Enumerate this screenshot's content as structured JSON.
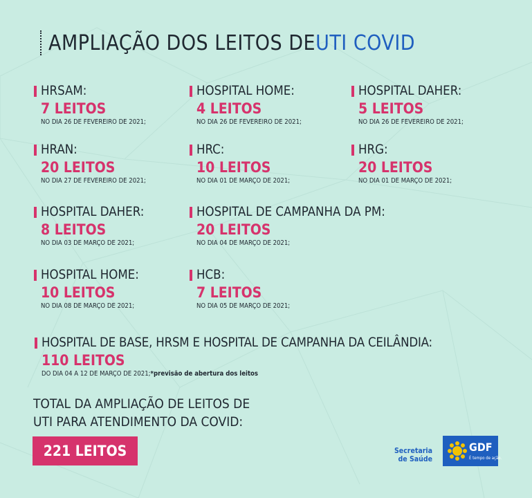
{
  "title": {
    "main": "AMPLIAÇÃO DOS LEITOS DE ",
    "highlight": "UTI COVID"
  },
  "items": [
    {
      "name": "HRSAM:",
      "beds": "7 LEITOS",
      "date": "NO DIA 26 DE FEVEREIRO DE 2021;"
    },
    {
      "name": "HOSPITAL HOME:",
      "beds": "4 LEITOS",
      "date": "NO DIA 26 DE FEVEREIRO DE 2021;"
    },
    {
      "name": "HOSPITAL DAHER:",
      "beds": "5 LEITOS",
      "date": "NO DIA 26 DE FEVEREIRO DE 2021;"
    },
    {
      "name": "HRAN:",
      "beds": "20 LEITOS",
      "date": "NO DIA 27 DE FEVEREIRO DE 2021;"
    },
    {
      "name": "HRC:",
      "beds": "10 LEITOS",
      "date": "NO DIA 01 DE MARÇO DE 2021;"
    },
    {
      "name": "HRG:",
      "beds": "20 LEITOS",
      "date": "NO DIA 01 DE MARÇO DE 2021;"
    },
    {
      "name": "HOSPITAL DAHER:",
      "beds": "8 LEITOS",
      "date": "NO DIA 03 DE MARÇO DE 2021;"
    },
    {
      "name": "HOSPITAL DE CAMPANHA DA PM:",
      "beds": "20 LEITOS",
      "date": "NO DIA 04 DE MARÇO DE 2021;"
    },
    {
      "name": "HOSPITAL HOME:",
      "beds": "10 LEITOS",
      "date": "NO DIA 08 DE MARÇO DE 2021;"
    },
    {
      "name": "HCB:",
      "beds": "7 LEITOS",
      "date": "NO DIA 05 DE MARÇO DE 2021;"
    },
    {
      "name": "HOSPITAL DE BASE, HRSM E HOSPITAL DE CAMPANHA DA CEILÂNDIA:",
      "beds": "110 LEITOS",
      "date": "DO DIA 04 A 12 DE MARÇO DE 2021;",
      "note": "*previsão de abertura dos leitos"
    }
  ],
  "total": {
    "line1": "TOTAL DA AMPLIAÇÃO DE LEITOS DE",
    "line2": "UTI PARA ATENDIMENTO DA COVID:",
    "value": "221 LEITOS"
  },
  "footer": {
    "secretaria_line1": "Secretaria",
    "secretaria_line2": "de Saúde",
    "gdf": "GDF",
    "gdf_slogan": "É tempo de ação."
  },
  "colors": {
    "background": "#c9ece2",
    "accent": "#d6336c",
    "highlight": "#1f5fbf",
    "text": "#1f2730"
  }
}
